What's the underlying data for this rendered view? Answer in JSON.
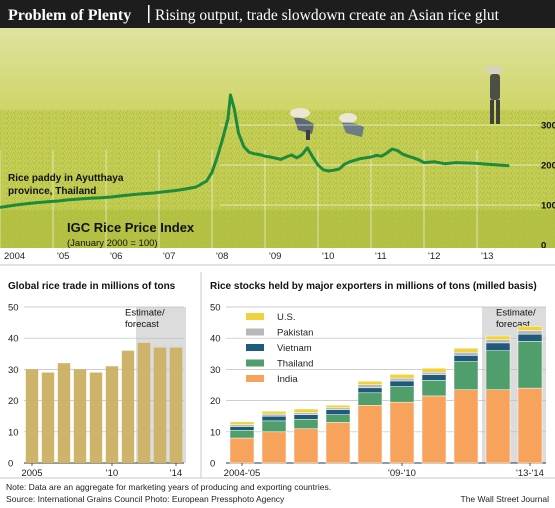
{
  "header": {
    "title": "Problem of Plenty",
    "subtitle": "Rising output, trade slowdown create an Asian rice glut"
  },
  "photo_caption": "Rice paddy in Ayutthaya province, Thailand",
  "photo_caption_lines": [
    "Rice paddy in Ayutthaya",
    "province, Thailand"
  ],
  "estimate_label_lines": [
    "Estimate/",
    "forecast"
  ],
  "footer": {
    "note": "Note: Data are an aggregate for marketing years of producing and exporting countries.",
    "source": "Source: International Grains Council     Photo: European Pressphoto Agency",
    "credit": "The Wall Street Journal"
  },
  "colors": {
    "title_bar": "#1d1d1d",
    "line": "#1f8a3a",
    "bar_trade": "#cdb46a",
    "estimate_band": "#dcdcdc",
    "india": "#f7a35c",
    "thailand": "#4f9e6b",
    "vietnam": "#1f5a7a",
    "pakistan": "#b8b8b8",
    "us": "#f0d23c"
  },
  "chart_data": [
    {
      "type": "line",
      "title": "IGC Rice Price Index",
      "subtitle": "(January 2000 = 100)",
      "x_tick_labels": [
        "2004",
        "'05",
        "'06",
        "'07",
        "'08",
        "'09",
        "'10",
        "'11",
        "'12",
        "'13"
      ],
      "y_ticks": [
        0,
        100,
        200,
        300
      ],
      "ylim": [
        0,
        400
      ],
      "xlim": [
        2004.0,
        2014.0
      ],
      "grid": true,
      "x": [
        2004.0,
        2004.1,
        2004.3,
        2004.5,
        2004.7,
        2004.9,
        2005.1,
        2005.3,
        2005.5,
        2005.7,
        2005.9,
        2006.1,
        2006.3,
        2006.5,
        2006.7,
        2006.9,
        2007.1,
        2007.3,
        2007.5,
        2007.7,
        2007.9,
        2008.0,
        2008.1,
        2008.2,
        2008.3,
        2008.35,
        2008.42,
        2008.5,
        2008.6,
        2008.7,
        2008.8,
        2008.9,
        2009.0,
        2009.1,
        2009.2,
        2009.3,
        2009.4,
        2009.5,
        2009.6,
        2009.7,
        2009.8,
        2009.9,
        2010.0,
        2010.1,
        2010.2,
        2010.3,
        2010.4,
        2010.5,
        2010.6,
        2010.7,
        2010.8,
        2010.9,
        2011.0,
        2011.1,
        2011.2,
        2011.3,
        2011.4,
        2011.5,
        2011.6,
        2011.7,
        2011.8,
        2011.9,
        2012.0,
        2012.2,
        2012.4,
        2012.6,
        2012.8,
        2013.0,
        2013.2,
        2013.4,
        2013.6
      ],
      "series": [
        {
          "values": [
            94,
            96,
            100,
            103,
            106,
            108,
            110,
            113,
            115,
            117,
            118,
            120,
            123,
            126,
            128,
            130,
            133,
            136,
            140,
            145,
            160,
            182,
            220,
            265,
            315,
            375,
            340,
            280,
            246,
            232,
            228,
            226,
            222,
            220,
            217,
            214,
            220,
            225,
            218,
            226,
            243,
            220,
            200,
            188,
            185,
            187,
            190,
            202,
            208,
            212,
            216,
            218,
            220,
            224,
            222,
            230,
            240,
            236,
            227,
            222,
            218,
            213,
            206,
            208,
            203,
            206,
            205,
            204,
            202,
            200,
            198
          ]
        }
      ]
    },
    {
      "type": "bar",
      "title": "Global rice trade in millions of tons",
      "categories": [
        "2005",
        "'06",
        "'07",
        "'08",
        "'09",
        "'10",
        "'11",
        "'12",
        "'13",
        "'14"
      ],
      "x_tick_labels": [
        "2005",
        "'10",
        "'14"
      ],
      "values": [
        30,
        29,
        32,
        30,
        29,
        31,
        36,
        38.5,
        37,
        37
      ],
      "estimate_from_index": 7,
      "ylim": [
        0,
        50
      ],
      "y_ticks": [
        0,
        10,
        20,
        30,
        40,
        50
      ],
      "grid": true
    },
    {
      "type": "bar",
      "stacked": true,
      "title": "Rice stocks held by major exporters in millions of tons (milled basis)",
      "categories": [
        "2004-'05",
        "2005-'06",
        "2006-'07",
        "2007-'08",
        "2008-'09",
        "2009-'10",
        "2010-'11",
        "2011-'12",
        "2012-'13",
        "2013-'14"
      ],
      "x_tick_labels": [
        "2004-'05",
        "'09-'10",
        "'13-'14"
      ],
      "x_tick_indices": [
        0,
        5,
        9
      ],
      "series": [
        {
          "name": "India",
          "values": [
            8,
            10,
            11,
            13,
            18.5,
            19.5,
            21.5,
            23.5,
            23.5,
            24
          ]
        },
        {
          "name": "Thailand",
          "values": [
            2.5,
            3.5,
            3,
            2.5,
            4,
            5,
            5,
            9,
            12.5,
            15
          ]
        },
        {
          "name": "Vietnam",
          "values": [
            1.2,
            1.5,
            1.5,
            1.6,
            1.6,
            1.8,
            1.8,
            2,
            2.5,
            2.3
          ]
        },
        {
          "name": "Pakistan",
          "values": [
            0.6,
            0.7,
            0.7,
            0.6,
            1,
            0.9,
            0.8,
            1,
            1,
            1.2
          ]
        },
        {
          "name": "U.S.",
          "values": [
            0.9,
            0.9,
            1.1,
            0.8,
            1.1,
            1.2,
            1.3,
            1.3,
            1.2,
            1.3
          ]
        }
      ],
      "legend_order": [
        "U.S.",
        "Pakistan",
        "Vietnam",
        "Thailand",
        "India"
      ],
      "legend_position": "top-left",
      "estimate_from_index": 8,
      "ylim": [
        0,
        50
      ],
      "y_ticks": [
        0,
        10,
        20,
        30,
        40,
        50
      ],
      "grid": true
    }
  ]
}
